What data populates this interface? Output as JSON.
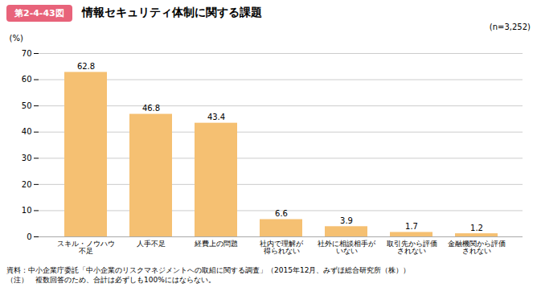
{
  "chart_data": {
    "type": "bar",
    "title": "情報セキュリティ体制に関する課題",
    "annotations": [
      "第2-4-43図",
      "(n=3,252)",
      "資料：中小企業庁委託「中小企業のリスクマネジメントへの取組に関する調査」（2015年12月、みずほ総合研究所（株））",
      "（注）　複数回答のため、合計は必ずしも100%にはならない。"
    ],
    "categories": [
      "スキル・ノウハウ\n不足",
      "人手不足",
      "経費上の問題",
      "社内で理解が\n得られない",
      "社外に相談相手が\nいない",
      "取引先から評価\nされない",
      "金融機関から評価\nされない"
    ],
    "values": [
      62.8,
      46.8,
      43.4,
      6.6,
      3.9,
      1.7,
      1.2
    ],
    "color": "#F5C072",
    "ylabel": "(%)",
    "ylim": [
      0,
      70
    ],
    "yticks": [
      0,
      10,
      20,
      30,
      40,
      50,
      60,
      70
    ],
    "grid": true,
    "data_labels": true
  }
}
